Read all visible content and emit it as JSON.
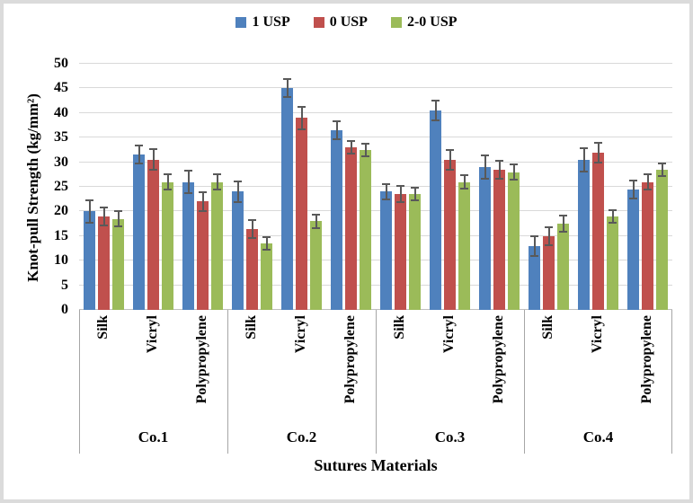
{
  "chart_data": {
    "type": "bar",
    "title": "",
    "xlabel": "Sutures Materials",
    "ylabel": "Knot-pull Strength (kg/mm²)",
    "ylim": [
      0,
      50
    ],
    "ytick_step": 5,
    "yticks": [
      0,
      5,
      10,
      15,
      20,
      25,
      30,
      35,
      40,
      45,
      50
    ],
    "grid": "horizontal",
    "legend_position": "top-center",
    "legend": [
      "1 USP",
      "0 USP",
      "2-0 USP"
    ],
    "series_colors": [
      "#4F81BD",
      "#C0504D",
      "#9BBB59"
    ],
    "error_bar_color": "#595959",
    "categories": [
      "Silk",
      "Vicryl",
      "Polypropylene"
    ],
    "groups": [
      {
        "label": "Co.1",
        "clusters": [
          {
            "label": "Silk",
            "values": [
              20,
              19,
              18.5
            ],
            "errors": [
              2.5,
              2,
              1.8
            ]
          },
          {
            "label": "Vicryl",
            "values": [
              31.5,
              30.5,
              26
            ],
            "errors": [
              2,
              2.3,
              1.7
            ]
          },
          {
            "label": "Polypropylene",
            "values": [
              26,
              22,
              26
            ],
            "errors": [
              2.4,
              2.1,
              1.8
            ]
          }
        ]
      },
      {
        "label": "Co.2",
        "clusters": [
          {
            "label": "Silk",
            "values": [
              24,
              16.5,
              13.5
            ],
            "errors": [
              2.2,
              2,
              1.5
            ]
          },
          {
            "label": "Vicryl",
            "values": [
              45,
              39,
              18
            ],
            "errors": [
              2,
              2.5,
              1.5
            ]
          },
          {
            "label": "Polypropylene",
            "values": [
              36.5,
              33,
              32.5
            ],
            "errors": [
              2,
              1.5,
              1.5
            ]
          }
        ]
      },
      {
        "label": "Co.3",
        "clusters": [
          {
            "label": "Silk",
            "values": [
              24,
              23.5,
              23.5
            ],
            "errors": [
              1.8,
              1.8,
              1.5
            ]
          },
          {
            "label": "Vicryl",
            "values": [
              40.5,
              30.5,
              26
            ],
            "errors": [
              2.2,
              2.2,
              1.5
            ]
          },
          {
            "label": "Polypropylene",
            "values": [
              29,
              28.5,
              28
            ],
            "errors": [
              2.5,
              2,
              1.8
            ]
          }
        ]
      },
      {
        "label": "Co.4",
        "clusters": [
          {
            "label": "Silk",
            "values": [
              13,
              15,
              17.5
            ],
            "errors": [
              2.2,
              2,
              1.8
            ]
          },
          {
            "label": "Vicryl",
            "values": [
              30.5,
              32,
              19
            ],
            "errors": [
              2.5,
              2.2,
              1.5
            ]
          },
          {
            "label": "Polypropylene",
            "values": [
              24.5,
              26,
              28.5
            ],
            "errors": [
              2,
              1.8,
              1.5
            ]
          }
        ]
      }
    ]
  }
}
